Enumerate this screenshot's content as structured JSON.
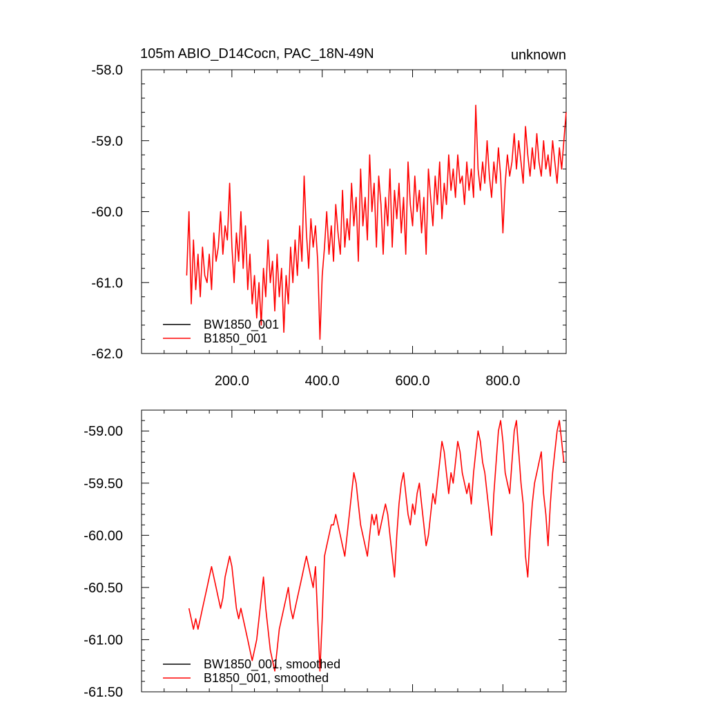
{
  "header": {
    "title_left": "105m ABIO_D14Cocn, PAC_18N-49N",
    "title_right": "unknown"
  },
  "chart_data": [
    {
      "type": "line",
      "title": "105m ABIO_D14Cocn, PAC_18N-49N",
      "subtitle": "unknown",
      "xlim": [
        0,
        940
      ],
      "ylim": [
        -62.0,
        -58.0
      ],
      "xticks": [
        200,
        400,
        600,
        800
      ],
      "xtick_labels": [
        "200.0",
        "400.0",
        "600.0",
        "800.0"
      ],
      "yticks": [
        -62,
        -61,
        -60,
        -59,
        -58
      ],
      "ytick_labels": [
        "-62.0",
        "-61.0",
        "-60.0",
        "-59.0",
        "-58.0"
      ],
      "legend_position": "bottom-left",
      "series": [
        {
          "name": "BW1850_001",
          "color": "#000000",
          "x": [],
          "values": []
        },
        {
          "name": "B1850_001",
          "color": "#ff0000",
          "x": [
            100,
            105,
            110,
            115,
            120,
            125,
            130,
            135,
            140,
            145,
            150,
            155,
            160,
            165,
            170,
            175,
            180,
            185,
            190,
            195,
            200,
            205,
            210,
            215,
            220,
            225,
            230,
            235,
            240,
            245,
            250,
            255,
            260,
            265,
            270,
            275,
            280,
            285,
            290,
            295,
            300,
            305,
            310,
            315,
            320,
            325,
            330,
            335,
            340,
            345,
            350,
            355,
            360,
            365,
            370,
            375,
            380,
            385,
            390,
            395,
            400,
            405,
            410,
            415,
            420,
            425,
            430,
            435,
            440,
            445,
            450,
            455,
            460,
            465,
            470,
            475,
            480,
            485,
            490,
            495,
            500,
            505,
            510,
            515,
            520,
            525,
            530,
            535,
            540,
            545,
            550,
            555,
            560,
            565,
            570,
            575,
            580,
            585,
            590,
            595,
            600,
            605,
            610,
            615,
            620,
            625,
            630,
            635,
            640,
            645,
            650,
            655,
            660,
            665,
            670,
            675,
            680,
            685,
            690,
            695,
            700,
            705,
            710,
            715,
            720,
            725,
            730,
            735,
            740,
            745,
            750,
            755,
            760,
            765,
            770,
            775,
            780,
            785,
            790,
            795,
            800,
            805,
            810,
            815,
            820,
            825,
            830,
            835,
            840,
            845,
            850,
            855,
            860,
            865,
            870,
            875,
            880,
            885,
            890,
            895,
            900,
            905,
            910,
            915,
            920,
            925,
            930,
            935,
            940
          ],
          "values": [
            -60.9,
            -60.0,
            -61.3,
            -60.4,
            -61.1,
            -60.6,
            -61.2,
            -60.5,
            -60.9,
            -61.0,
            -60.6,
            -61.1,
            -60.3,
            -60.7,
            -60.5,
            -60.0,
            -60.6,
            -60.2,
            -60.4,
            -59.6,
            -60.5,
            -61.0,
            -60.3,
            -60.7,
            -60.0,
            -60.8,
            -60.2,
            -61.1,
            -60.6,
            -61.3,
            -60.9,
            -61.5,
            -61.0,
            -61.6,
            -60.8,
            -61.2,
            -60.4,
            -61.0,
            -60.7,
            -61.4,
            -60.6,
            -61.2,
            -60.8,
            -61.7,
            -60.9,
            -61.3,
            -60.5,
            -61.0,
            -60.4,
            -60.9,
            -60.2,
            -60.7,
            -59.5,
            -60.3,
            -60.8,
            -60.1,
            -60.5,
            -60.2,
            -60.7,
            -61.8,
            -60.9,
            -60.5,
            -60.0,
            -60.6,
            -60.2,
            -60.7,
            -59.9,
            -60.3,
            -60.6,
            -59.7,
            -60.5,
            -60.1,
            -60.4,
            -59.6,
            -60.2,
            -59.8,
            -60.7,
            -59.4,
            -60.2,
            -59.8,
            -60.4,
            -59.2,
            -60.0,
            -59.6,
            -60.5,
            -59.5,
            -59.9,
            -60.6,
            -59.8,
            -60.2,
            -59.4,
            -60.5,
            -59.7,
            -60.1,
            -59.6,
            -60.3,
            -59.8,
            -60.6,
            -59.3,
            -59.9,
            -60.2,
            -59.5,
            -60.0,
            -59.7,
            -60.3,
            -59.8,
            -60.6,
            -59.4,
            -59.8,
            -60.2,
            -59.5,
            -59.9,
            -59.3,
            -60.1,
            -59.6,
            -59.9,
            -59.2,
            -59.7,
            -59.4,
            -59.8,
            -59.2,
            -59.6,
            -59.5,
            -59.9,
            -59.3,
            -59.7,
            -59.4,
            -59.8,
            -58.5,
            -59.4,
            -59.7,
            -59.3,
            -59.6,
            -59.0,
            -59.5,
            -59.8,
            -59.3,
            -59.6,
            -59.1,
            -59.5,
            -60.3,
            -59.6,
            -59.2,
            -59.5,
            -59.3,
            -58.9,
            -59.4,
            -59.0,
            -59.3,
            -59.6,
            -58.8,
            -59.2,
            -59.5,
            -59.1,
            -59.4,
            -58.9,
            -59.3,
            -59.5,
            -59.0,
            -59.4,
            -59.2,
            -59.5,
            -59.0,
            -59.3,
            -59.6,
            -59.1,
            -59.4,
            -59.0,
            -58.6
          ]
        }
      ]
    },
    {
      "type": "line",
      "title": "",
      "xlim": [
        0,
        940
      ],
      "ylim": [
        -61.5,
        -58.8
      ],
      "xticks": [
        200,
        400,
        600,
        800
      ],
      "xtick_labels": [],
      "yticks": [
        -61.5,
        -61.0,
        -60.5,
        -60.0,
        -59.5,
        -59.0
      ],
      "ytick_labels": [
        "-61.50",
        "-61.00",
        "-60.50",
        "-60.00",
        "-59.50",
        "-59.00"
      ],
      "legend_position": "bottom-left",
      "series": [
        {
          "name": "BW1850_001, smoothed",
          "color": "#000000",
          "x": [],
          "values": []
        },
        {
          "name": "B1850_001, smoothed",
          "color": "#ff0000",
          "x": [
            105,
            110,
            115,
            120,
            125,
            130,
            135,
            140,
            145,
            150,
            155,
            160,
            165,
            170,
            175,
            180,
            185,
            190,
            195,
            200,
            205,
            210,
            215,
            220,
            225,
            230,
            235,
            240,
            245,
            250,
            255,
            260,
            265,
            270,
            275,
            280,
            285,
            290,
            295,
            300,
            305,
            310,
            315,
            320,
            325,
            330,
            335,
            340,
            345,
            350,
            355,
            360,
            365,
            370,
            375,
            380,
            385,
            390,
            395,
            400,
            405,
            410,
            415,
            420,
            425,
            430,
            435,
            440,
            445,
            450,
            455,
            460,
            465,
            470,
            475,
            480,
            485,
            490,
            495,
            500,
            505,
            510,
            515,
            520,
            525,
            530,
            535,
            540,
            545,
            550,
            555,
            560,
            565,
            570,
            575,
            580,
            585,
            590,
            595,
            600,
            605,
            610,
            615,
            620,
            625,
            630,
            635,
            640,
            645,
            650,
            655,
            660,
            665,
            670,
            675,
            680,
            685,
            690,
            695,
            700,
            705,
            710,
            715,
            720,
            725,
            730,
            735,
            740,
            745,
            750,
            755,
            760,
            765,
            770,
            775,
            780,
            785,
            790,
            795,
            800,
            805,
            810,
            815,
            820,
            825,
            830,
            835,
            840,
            845,
            850,
            855,
            860,
            865,
            870,
            875,
            880,
            885,
            890,
            895,
            900,
            905,
            910,
            915,
            920,
            925,
            930,
            935
          ],
          "values": [
            -60.7,
            -60.8,
            -60.9,
            -60.8,
            -60.9,
            -60.8,
            -60.7,
            -60.6,
            -60.5,
            -60.4,
            -60.3,
            -60.4,
            -60.5,
            -60.6,
            -60.7,
            -60.6,
            -60.4,
            -60.3,
            -60.2,
            -60.3,
            -60.5,
            -60.7,
            -60.8,
            -60.7,
            -60.8,
            -60.9,
            -61.0,
            -61.1,
            -61.2,
            -61.1,
            -61.0,
            -60.8,
            -60.6,
            -60.4,
            -60.7,
            -60.9,
            -61.1,
            -61.2,
            -61.3,
            -61.1,
            -60.9,
            -60.8,
            -60.7,
            -60.6,
            -60.5,
            -60.7,
            -60.8,
            -60.7,
            -60.6,
            -60.5,
            -60.4,
            -60.3,
            -60.2,
            -60.3,
            -60.4,
            -60.5,
            -60.3,
            -60.8,
            -61.3,
            -60.8,
            -60.2,
            -60.1,
            -60.0,
            -59.9,
            -59.9,
            -59.8,
            -59.9,
            -60.0,
            -60.1,
            -60.2,
            -60.0,
            -59.8,
            -59.6,
            -59.4,
            -59.5,
            -59.7,
            -59.9,
            -60.0,
            -60.1,
            -60.2,
            -60.0,
            -59.8,
            -59.9,
            -59.8,
            -60.0,
            -59.9,
            -59.8,
            -59.7,
            -59.8,
            -60.0,
            -60.2,
            -60.4,
            -60.0,
            -59.7,
            -59.5,
            -59.4,
            -59.6,
            -59.8,
            -59.9,
            -59.7,
            -59.8,
            -59.6,
            -59.5,
            -59.7,
            -59.9,
            -60.1,
            -60.0,
            -59.8,
            -59.6,
            -59.7,
            -59.5,
            -59.3,
            -59.1,
            -59.2,
            -59.4,
            -59.6,
            -59.4,
            -59.5,
            -59.3,
            -59.1,
            -59.2,
            -59.4,
            -59.5,
            -59.6,
            -59.5,
            -59.7,
            -59.4,
            -59.2,
            -59.0,
            -59.1,
            -59.3,
            -59.4,
            -59.6,
            -59.8,
            -60.0,
            -59.6,
            -59.3,
            -59.0,
            -58.9,
            -59.1,
            -59.4,
            -59.5,
            -59.6,
            -59.3,
            -59.0,
            -58.9,
            -59.2,
            -59.5,
            -59.7,
            -60.2,
            -60.4,
            -60.0,
            -59.7,
            -59.5,
            -59.4,
            -59.3,
            -59.2,
            -59.6,
            -59.8,
            -60.1,
            -59.7,
            -59.4,
            -59.2,
            -59.0,
            -58.9,
            -59.1,
            -59.3
          ]
        }
      ]
    }
  ]
}
